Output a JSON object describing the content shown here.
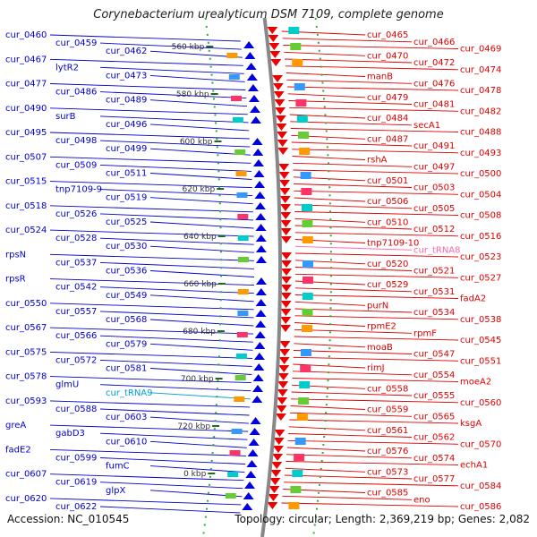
{
  "title": "Corynebacterium urealyticum DSM 7109, complete genome",
  "footer": {
    "accession": "Accession: NC_010545",
    "topology": "Topology: circular; Length: 2,369,219 bp; Genes: 2,082"
  },
  "colors": {
    "left_strand": "#0000cc",
    "right_strand": "#dd0000",
    "rna_label": "#00a0d0",
    "trna_right_label": "#ff66aa",
    "scale_label": "#333333",
    "backbone": "#888888",
    "dotted_track": "#33aa33"
  },
  "scale_ticks": [
    "560 kbp",
    "580 kbp",
    "600 kbp",
    "620 kbp",
    "640 kbp",
    "660 kbp",
    "680 kbp",
    "700 kbp",
    "720 kbp",
    "0 kbp"
  ],
  "left_labels": [
    {
      "text": "cur_0460"
    },
    {
      "text": "cur_0459"
    },
    {
      "text": "cur_0462"
    },
    {
      "text": "cur_0467"
    },
    {
      "text": "lytR2"
    },
    {
      "text": "cur_0473"
    },
    {
      "text": "cur_0477"
    },
    {
      "text": "cur_0486"
    },
    {
      "text": "cur_0489"
    },
    {
      "text": "cur_0490"
    },
    {
      "text": "surB"
    },
    {
      "text": "cur_0496"
    },
    {
      "text": "cur_0495"
    },
    {
      "text": "cur_0498"
    },
    {
      "text": "cur_0499"
    },
    {
      "text": "cur_0507"
    },
    {
      "text": "cur_0509"
    },
    {
      "text": "cur_0511"
    },
    {
      "text": "cur_0515"
    },
    {
      "text": "tnp7109-9"
    },
    {
      "text": "cur_0519"
    },
    {
      "text": "cur_0518"
    },
    {
      "text": "cur_0526"
    },
    {
      "text": "cur_0525"
    },
    {
      "text": "cur_0524"
    },
    {
      "text": "cur_0528"
    },
    {
      "text": "cur_0530"
    },
    {
      "text": "rpsN"
    },
    {
      "text": "cur_0537"
    },
    {
      "text": "cur_0536"
    },
    {
      "text": "rpsR"
    },
    {
      "text": "cur_0542"
    },
    {
      "text": "cur_0549"
    },
    {
      "text": "cur_0550"
    },
    {
      "text": "cur_0557"
    },
    {
      "text": "cur_0568"
    },
    {
      "text": "cur_0567"
    },
    {
      "text": "cur_0566"
    },
    {
      "text": "cur_0579"
    },
    {
      "text": "cur_0575"
    },
    {
      "text": "cur_0572"
    },
    {
      "text": "cur_0581"
    },
    {
      "text": "cur_0578"
    },
    {
      "text": "glmU"
    },
    {
      "text": "cur_tRNA9"
    },
    {
      "text": "cur_0593"
    },
    {
      "text": "cur_0588"
    },
    {
      "text": "cur_0603"
    },
    {
      "text": "greA"
    },
    {
      "text": "gabD3"
    },
    {
      "text": "cur_0610"
    },
    {
      "text": "fadE2"
    },
    {
      "text": "cur_0599"
    },
    {
      "text": "fumC"
    },
    {
      "text": "cur_0607"
    },
    {
      "text": "cur_0619"
    },
    {
      "text": "glpX"
    },
    {
      "text": "cur_0620"
    },
    {
      "text": "cur_0622"
    }
  ],
  "right_labels": [
    {
      "text": "cur_0465"
    },
    {
      "text": "cur_0466"
    },
    {
      "text": "cur_0469"
    },
    {
      "text": "cur_0470"
    },
    {
      "text": "cur_0472"
    },
    {
      "text": "cur_0474"
    },
    {
      "text": "manB"
    },
    {
      "text": "cur_0476"
    },
    {
      "text": "cur_0478"
    },
    {
      "text": "cur_0479"
    },
    {
      "text": "cur_0481"
    },
    {
      "text": "cur_0482"
    },
    {
      "text": "cur_0484"
    },
    {
      "text": "secA1"
    },
    {
      "text": "cur_0488"
    },
    {
      "text": "cur_0487"
    },
    {
      "text": "cur_0491"
    },
    {
      "text": "cur_0493"
    },
    {
      "text": "rshA"
    },
    {
      "text": "cur_0497"
    },
    {
      "text": "cur_0500"
    },
    {
      "text": "cur_0501"
    },
    {
      "text": "cur_0503"
    },
    {
      "text": "cur_0504"
    },
    {
      "text": "cur_0506"
    },
    {
      "text": "cur_0505"
    },
    {
      "text": "cur_0508"
    },
    {
      "text": "cur_0510"
    },
    {
      "text": "cur_0512"
    },
    {
      "text": "cur_0516"
    },
    {
      "text": "tnp7109-10"
    },
    {
      "text": "cur_tRNA8"
    },
    {
      "text": "cur_0523"
    },
    {
      "text": "cur_0520"
    },
    {
      "text": "cur_0521"
    },
    {
      "text": "cur_0527"
    },
    {
      "text": "cur_0529"
    },
    {
      "text": "cur_0531"
    },
    {
      "text": "fadA2"
    },
    {
      "text": "purN"
    },
    {
      "text": "cur_0534"
    },
    {
      "text": "cur_0538"
    },
    {
      "text": "rpmE2"
    },
    {
      "text": "rpmF"
    },
    {
      "text": "cur_0545"
    },
    {
      "text": "moaB"
    },
    {
      "text": "cur_0547"
    },
    {
      "text": "cur_0551"
    },
    {
      "text": "rimJ"
    },
    {
      "text": "cur_0554"
    },
    {
      "text": "moeA2"
    },
    {
      "text": "cur_0558"
    },
    {
      "text": "cur_0555"
    },
    {
      "text": "cur_0560"
    },
    {
      "text": "cur_0559"
    },
    {
      "text": "cur_0565"
    },
    {
      "text": "ksgA"
    },
    {
      "text": "cur_0561"
    },
    {
      "text": "cur_0562"
    },
    {
      "text": "cur_0570"
    },
    {
      "text": "cur_0576"
    },
    {
      "text": "cur_0574"
    },
    {
      "text": "echA1"
    },
    {
      "text": "cur_0573"
    },
    {
      "text": "cur_0577"
    },
    {
      "text": "cur_0584"
    },
    {
      "text": "cur_0585"
    },
    {
      "text": "eno"
    },
    {
      "text": "cur_0586"
    }
  ]
}
